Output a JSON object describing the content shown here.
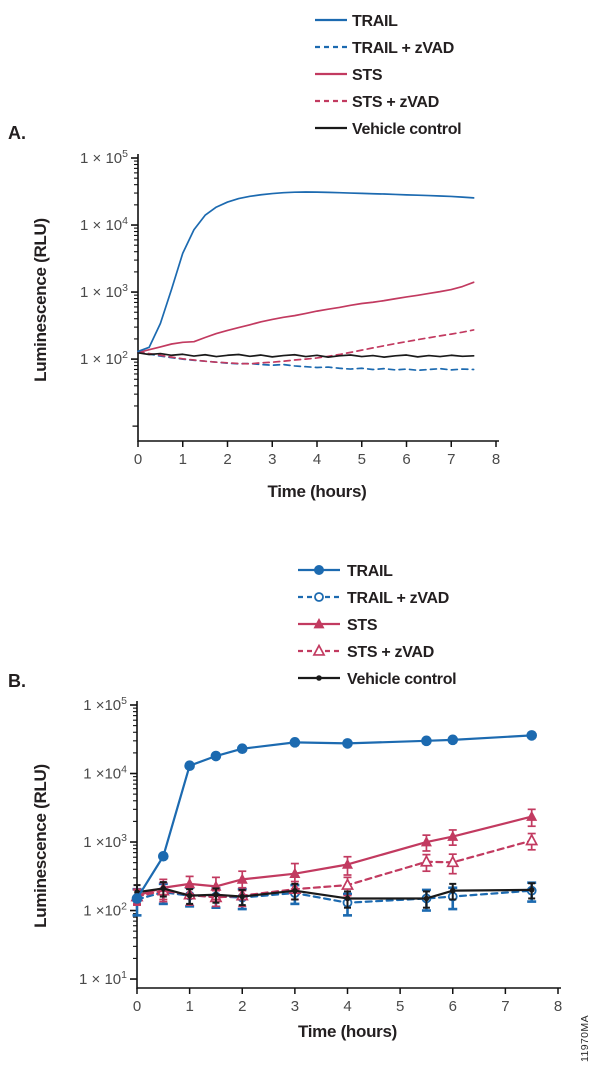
{
  "watermark": "11970MA",
  "chart_data": [
    {
      "panel_label": "A.",
      "type": "line",
      "xlabel": "Time (hours)",
      "ylabel": "Luminescence (RLU)",
      "xlim": [
        0,
        8
      ],
      "x_ticks": [
        0,
        1,
        2,
        3,
        4,
        5,
        6,
        7,
        8
      ],
      "ylog": true,
      "ymax": 100000,
      "ymin": 6,
      "y_ticks": [
        {
          "text": "1 × 10",
          "sup": "5",
          "value": 100000
        },
        {
          "text": "1 × 10",
          "sup": "4",
          "value": 10000
        },
        {
          "text": "1 × 10",
          "sup": "3",
          "value": 1000
        },
        {
          "text": "1 × 10",
          "sup": "2",
          "value": 100
        }
      ],
      "series": [
        {
          "name": "TRAIL",
          "color": "#1c6ab0",
          "dash": null,
          "marker": null,
          "x": [
            0,
            0.25,
            0.5,
            0.75,
            1,
            1.25,
            1.5,
            1.75,
            2,
            2.25,
            2.5,
            2.75,
            3,
            3.25,
            3.5,
            3.75,
            4,
            4.25,
            4.5,
            4.75,
            5,
            5.25,
            5.5,
            5.75,
            6,
            6.25,
            6.5,
            6.75,
            7,
            7.25,
            7.5
          ],
          "y": [
            130,
            150,
            340,
            1100,
            3800,
            8500,
            14000,
            18500,
            22000,
            24800,
            26800,
            28300,
            29500,
            30400,
            30900,
            31100,
            31000,
            30700,
            30400,
            30000,
            29700,
            29300,
            29000,
            28600,
            28200,
            27900,
            27500,
            27100,
            26700,
            26100,
            25400
          ]
        },
        {
          "name": "TRAIL + zVAD",
          "color": "#1c6ab0",
          "dash": "6,4.5",
          "marker": null,
          "x": [
            0,
            0.25,
            0.5,
            0.75,
            1,
            1.25,
            1.5,
            1.75,
            2,
            2.25,
            2.5,
            2.75,
            3,
            3.25,
            3.5,
            3.75,
            4,
            4.25,
            4.5,
            4.75,
            5,
            5.25,
            5.5,
            5.75,
            6,
            6.25,
            6.5,
            6.75,
            7,
            7.25,
            7.5
          ],
          "y": [
            130,
            119,
            111,
            105,
            100,
            96,
            93,
            90,
            87,
            85,
            86,
            83,
            81,
            83,
            79,
            77,
            75,
            76,
            73,
            71,
            73,
            70,
            72,
            69,
            71,
            68,
            70,
            72,
            69,
            71,
            70
          ]
        },
        {
          "name": "STS",
          "color": "#c23a60",
          "dash": null,
          "marker": null,
          "x": [
            0,
            0.25,
            0.5,
            0.75,
            1,
            1.25,
            1.5,
            1.75,
            2,
            2.25,
            2.5,
            2.75,
            3,
            3.25,
            3.5,
            3.75,
            4,
            4.25,
            4.5,
            4.75,
            5,
            5.25,
            5.5,
            5.75,
            6,
            6.25,
            6.5,
            6.75,
            7,
            7.25,
            7.5
          ],
          "y": [
            125,
            138,
            152,
            168,
            178,
            182,
            210,
            240,
            268,
            295,
            325,
            360,
            390,
            420,
            445,
            480,
            520,
            555,
            590,
            635,
            675,
            705,
            745,
            795,
            845,
            895,
            955,
            1015,
            1090,
            1210,
            1400
          ]
        },
        {
          "name": "STS + zVAD",
          "color": "#c23a60",
          "dash": "6,4.5",
          "marker": null,
          "x": [
            0,
            0.25,
            0.5,
            0.75,
            1,
            1.25,
            1.5,
            1.75,
            2,
            2.25,
            2.5,
            2.75,
            3,
            3.25,
            3.5,
            3.75,
            4,
            4.25,
            4.5,
            4.75,
            5,
            5.25,
            5.5,
            5.75,
            6,
            6.25,
            6.5,
            6.75,
            7,
            7.25,
            7.5
          ],
          "y": [
            128,
            121,
            114,
            107,
            101,
            97,
            93,
            90,
            88,
            86,
            85,
            88,
            90,
            93,
            97,
            100,
            104,
            110,
            117,
            126,
            136,
            147,
            158,
            170,
            182,
            195,
            208,
            222,
            236,
            252,
            272
          ]
        },
        {
          "name": "Vehicle control",
          "color": "#1a1a1a",
          "dash": null,
          "marker": null,
          "x": [
            0,
            0.25,
            0.5,
            0.75,
            1,
            1.25,
            1.5,
            1.75,
            2,
            2.25,
            2.5,
            2.75,
            3,
            3.25,
            3.5,
            3.75,
            4,
            4.25,
            4.5,
            4.75,
            5,
            5.25,
            5.5,
            5.75,
            6,
            6.25,
            6.5,
            6.75,
            7,
            7.25,
            7.5
          ],
          "y": [
            124,
            117,
            121,
            114,
            118,
            111,
            116,
            109,
            114,
            117,
            110,
            115,
            108,
            113,
            116,
            109,
            114,
            107,
            112,
            115,
            109,
            113,
            107,
            112,
            115,
            108,
            113,
            109,
            114,
            110,
            112
          ]
        }
      ]
    },
    {
      "panel_label": "B.",
      "type": "line",
      "xlabel": "Time (hours)",
      "ylabel": "Luminescence (RLU)",
      "xlim": [
        0,
        8
      ],
      "x_ticks": [
        0,
        1,
        2,
        3,
        4,
        5,
        6,
        7,
        8
      ],
      "ylog": true,
      "ymax": 100000,
      "ymin": 7.4,
      "y_ticks": [
        {
          "text": "1 ×10",
          "sup": "5",
          "value": 100000
        },
        {
          "text": "1 ×10",
          "sup": "4",
          "value": 10000
        },
        {
          "text": "1 ×10",
          "sup": "3",
          "value": 1000
        },
        {
          "text": "1 ×10",
          "sup": "2",
          "value": 100
        },
        {
          "text": "1 × 10",
          "sup": "1",
          "value": 10
        }
      ],
      "series": [
        {
          "name": "TRAIL",
          "color": "#1c6ab0",
          "dash": null,
          "marker": "circle",
          "x": [
            0,
            0.5,
            1,
            1.5,
            2,
            3,
            4,
            5.5,
            6,
            7.5
          ],
          "y": [
            150,
            620,
            13000,
            18000,
            23000,
            28500,
            27500,
            30000,
            31000,
            36000
          ],
          "err": [
            0,
            0,
            0,
            0,
            0,
            0,
            0,
            0,
            0,
            0
          ]
        },
        {
          "name": "TRAIL + zVAD",
          "color": "#1c6ab0",
          "dash": "6,4.5",
          "marker": "circle-open",
          "x": [
            0,
            0.5,
            1,
            1.5,
            2,
            3,
            4,
            5.5,
            6,
            7.5
          ],
          "y": [
            145,
            185,
            165,
            160,
            155,
            180,
            130,
            150,
            160,
            195
          ],
          "err": [
            60,
            60,
            50,
            50,
            50,
            55,
            45,
            50,
            55,
            60
          ]
        },
        {
          "name": "STS",
          "color": "#c23a60",
          "dash": null,
          "marker": "triangle",
          "x": [
            0,
            0.5,
            1,
            1.5,
            2,
            3,
            4,
            5.5,
            6,
            7.5
          ],
          "y": [
            165,
            215,
            245,
            225,
            285,
            345,
            470,
            1000,
            1200,
            2350
          ],
          "err": [
            40,
            70,
            70,
            80,
            90,
            140,
            140,
            260,
            300,
            650
          ]
        },
        {
          "name": "STS + zVAD",
          "color": "#c23a60",
          "dash": "6,4.5",
          "marker": "triangle-open",
          "x": [
            0,
            0.5,
            1,
            1.5,
            2,
            3,
            4,
            5.5,
            6,
            7.5
          ],
          "y": [
            160,
            195,
            170,
            155,
            165,
            205,
            235,
            515,
            505,
            1050
          ],
          "err": [
            40,
            60,
            50,
            40,
            50,
            60,
            70,
            140,
            160,
            280
          ]
        },
        {
          "name": "Vehicle control",
          "color": "#1a1a1a",
          "dash": null,
          "marker": "dot",
          "x": [
            0,
            0.5,
            1,
            1.5,
            2,
            3,
            4,
            5.5,
            6,
            7.5
          ],
          "y": [
            185,
            210,
            165,
            170,
            160,
            195,
            150,
            150,
            195,
            200
          ],
          "err": [
            50,
            50,
            40,
            40,
            40,
            50,
            40,
            40,
            50,
            50
          ]
        }
      ]
    }
  ]
}
